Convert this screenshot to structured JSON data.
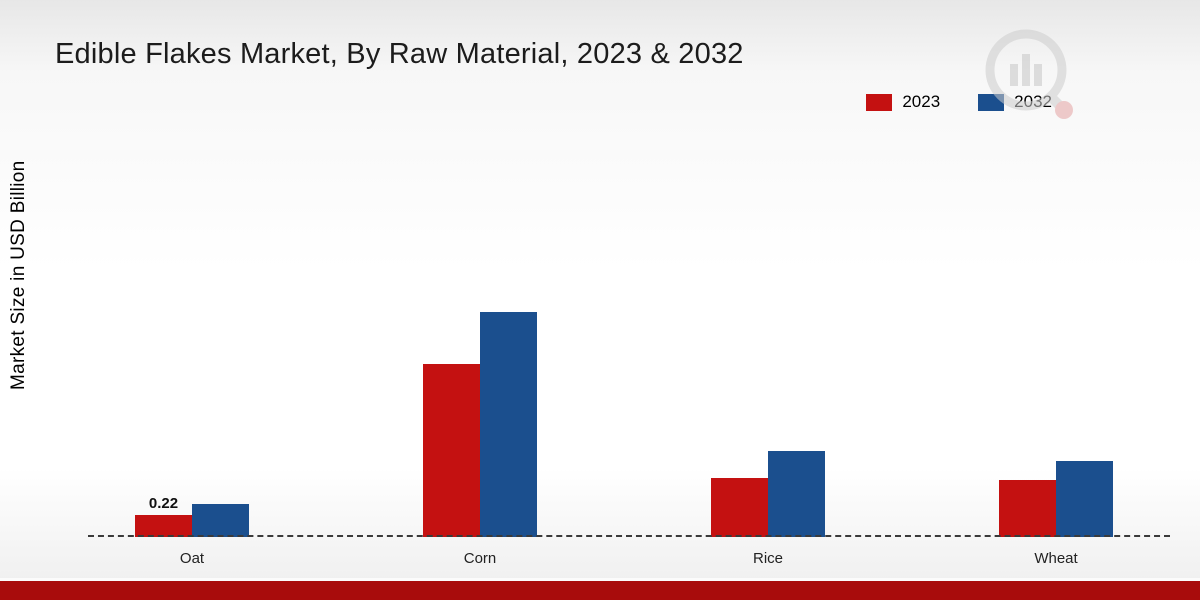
{
  "title": "Edible Flakes Market, By Raw Material, 2023 & 2032",
  "ylabel": "Market Size in USD Billion",
  "legend": [
    {
      "label": "2023",
      "color": "#c41111"
    },
    {
      "label": "2032",
      "color": "#1b4f8e"
    }
  ],
  "footer": {
    "band_color": "#a80c0c"
  },
  "chart_data": {
    "type": "bar",
    "title": "Edible Flakes Market, By Raw Material, 2023 & 2032",
    "ylabel": "Market Size in USD Billion",
    "xlabel": "",
    "categories": [
      "Oat",
      "Corn",
      "Rice",
      "Wheat"
    ],
    "series": [
      {
        "name": "2023",
        "color": "#c41111",
        "values": [
          0.22,
          1.73,
          0.59,
          0.57
        ]
      },
      {
        "name": "2032",
        "color": "#1b4f8e",
        "values": [
          0.33,
          2.25,
          0.86,
          0.76
        ]
      }
    ],
    "labels": [
      [
        "0.22",
        "",
        "",
        ""
      ],
      [
        "",
        "",
        "",
        ""
      ]
    ],
    "ylim": [
      0,
      2.5
    ],
    "grid": false,
    "axis_style": "dashed-baseline-only",
    "legend_position": "top-right",
    "unit": "USD Billion"
  }
}
